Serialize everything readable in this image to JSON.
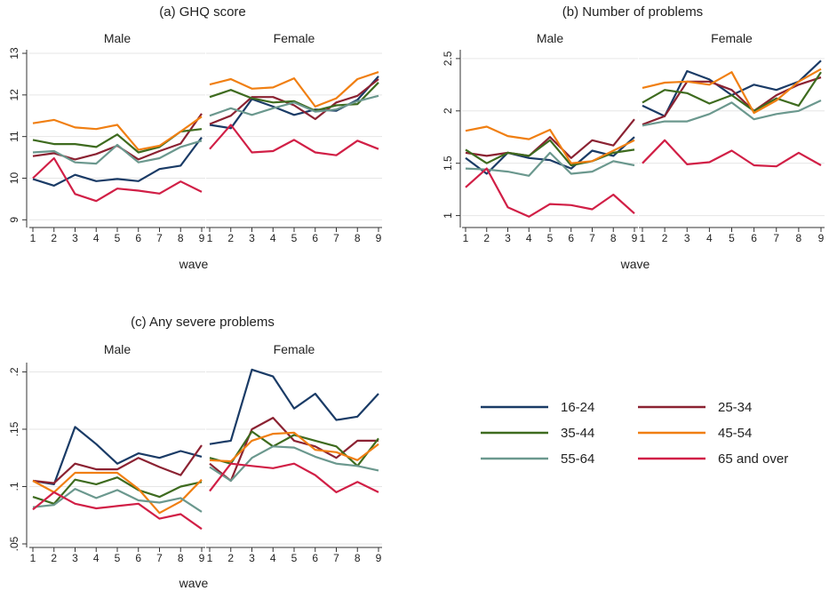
{
  "legend": [
    {
      "name": "16-24",
      "color": "#1a3b66"
    },
    {
      "name": "25-34",
      "color": "#8b2232"
    },
    {
      "name": "35-44",
      "color": "#3e6b1f"
    },
    {
      "name": "45-54",
      "color": "#f07f12"
    },
    {
      "name": "55-64",
      "color": "#6b988e"
    },
    {
      "name": "65 and over",
      "color": "#d11f46"
    }
  ],
  "chart_data": [
    {
      "type": "line",
      "title": "(a) GHQ score",
      "xlabel": "wave",
      "ylabel": "",
      "x": [
        1,
        2,
        3,
        4,
        5,
        6,
        7,
        8,
        9
      ],
      "ylim": [
        8.9,
        13.0
      ],
      "yticks": [
        9,
        10,
        11,
        12,
        13
      ],
      "ytick_labels": [
        "9",
        "10",
        "11",
        "12",
        "13"
      ],
      "panels": [
        {
          "name": "Male",
          "series": [
            {
              "name": "16-24",
              "values": [
                9.98,
                9.82,
                10.08,
                9.93,
                9.98,
                9.93,
                10.22,
                10.3,
                10.98
              ]
            },
            {
              "name": "25-34",
              "values": [
                10.53,
                10.6,
                10.45,
                10.58,
                10.78,
                10.45,
                10.65,
                10.83,
                11.55
              ]
            },
            {
              "name": "35-44",
              "values": [
                10.92,
                10.82,
                10.82,
                10.75,
                11.05,
                10.62,
                10.75,
                11.12,
                11.18
              ]
            },
            {
              "name": "45-54",
              "values": [
                11.32,
                11.4,
                11.22,
                11.18,
                11.28,
                10.68,
                10.78,
                11.12,
                11.48
              ]
            },
            {
              "name": "55-64",
              "values": [
                10.62,
                10.65,
                10.38,
                10.35,
                10.8,
                10.38,
                10.48,
                10.75,
                10.9
              ]
            },
            {
              "name": "65 and over",
              "values": [
                10.0,
                10.48,
                9.62,
                9.45,
                9.75,
                9.7,
                9.63,
                9.92,
                9.67
              ]
            }
          ]
        },
        {
          "name": "Female",
          "series": [
            {
              "name": "16-24",
              "values": [
                11.28,
                11.2,
                11.9,
                11.72,
                11.52,
                11.65,
                11.62,
                11.88,
                12.45
              ]
            },
            {
              "name": "25-34",
              "values": [
                11.3,
                11.5,
                11.95,
                11.95,
                11.75,
                11.42,
                11.82,
                11.98,
                12.38
              ]
            },
            {
              "name": "35-44",
              "values": [
                11.95,
                12.12,
                11.92,
                11.82,
                11.85,
                11.62,
                11.75,
                11.78,
                12.3
              ]
            },
            {
              "name": "45-54",
              "values": [
                12.25,
                12.38,
                12.15,
                12.18,
                12.4,
                11.72,
                11.92,
                12.38,
                12.55
              ]
            },
            {
              "name": "55-64",
              "values": [
                11.5,
                11.68,
                11.52,
                11.68,
                11.82,
                11.6,
                11.65,
                11.85,
                11.98
              ]
            },
            {
              "name": "65 and over",
              "values": [
                10.7,
                11.28,
                10.62,
                10.65,
                10.92,
                10.62,
                10.55,
                10.9,
                10.7
              ]
            }
          ]
        }
      ]
    },
    {
      "type": "line",
      "title": "(b) Number of problems",
      "xlabel": "wave",
      "ylabel": "",
      "x": [
        1,
        2,
        3,
        4,
        5,
        6,
        7,
        8,
        9
      ],
      "ylim": [
        0.92,
        2.55
      ],
      "yticks": [
        1,
        1.5,
        2,
        2.5
      ],
      "ytick_labels": [
        "1",
        "1.5",
        "2",
        "2.5"
      ],
      "panels": [
        {
          "name": "Male",
          "series": [
            {
              "name": "16-24",
              "values": [
                1.55,
                1.4,
                1.6,
                1.55,
                1.53,
                1.45,
                1.62,
                1.57,
                1.75
              ]
            },
            {
              "name": "25-34",
              "values": [
                1.6,
                1.57,
                1.6,
                1.57,
                1.75,
                1.55,
                1.72,
                1.67,
                1.92
              ]
            },
            {
              "name": "35-44",
              "values": [
                1.63,
                1.5,
                1.6,
                1.57,
                1.72,
                1.48,
                1.52,
                1.6,
                1.63
              ]
            },
            {
              "name": "45-54",
              "values": [
                1.81,
                1.85,
                1.76,
                1.73,
                1.82,
                1.5,
                1.52,
                1.62,
                1.72
              ]
            },
            {
              "name": "55-64",
              "values": [
                1.45,
                1.44,
                1.42,
                1.38,
                1.6,
                1.4,
                1.42,
                1.52,
                1.48
              ]
            },
            {
              "name": "65 and over",
              "values": [
                1.27,
                1.45,
                1.08,
                0.99,
                1.11,
                1.1,
                1.06,
                1.2,
                1.02
              ]
            }
          ]
        },
        {
          "name": "Female",
          "series": [
            {
              "name": "16-24",
              "values": [
                2.05,
                1.95,
                2.38,
                2.3,
                2.15,
                2.25,
                2.2,
                2.28,
                2.48
              ]
            },
            {
              "name": "25-34",
              "values": [
                1.87,
                1.95,
                2.28,
                2.28,
                2.2,
                2.0,
                2.15,
                2.25,
                2.32
              ]
            },
            {
              "name": "35-44",
              "values": [
                2.08,
                2.2,
                2.17,
                2.07,
                2.15,
                2.0,
                2.12,
                2.05,
                2.37
              ]
            },
            {
              "name": "45-54",
              "values": [
                2.22,
                2.27,
                2.28,
                2.25,
                2.37,
                1.98,
                2.1,
                2.28,
                2.4
              ]
            },
            {
              "name": "55-64",
              "values": [
                1.86,
                1.9,
                1.9,
                1.97,
                2.08,
                1.92,
                1.97,
                2.0,
                2.1
              ]
            },
            {
              "name": "65 and over",
              "values": [
                1.5,
                1.72,
                1.49,
                1.51,
                1.62,
                1.48,
                1.47,
                1.6,
                1.48
              ]
            }
          ]
        }
      ]
    },
    {
      "type": "line",
      "title": "(c) Any severe problems",
      "xlabel": "wave",
      "ylabel": "",
      "x": [
        1,
        2,
        3,
        4,
        5,
        6,
        7,
        8,
        9
      ],
      "ylim": [
        0.05,
        0.205
      ],
      "yticks": [
        0.05,
        0.1,
        0.15,
        0.2
      ],
      "ytick_labels": [
        ".05",
        ".1",
        ".15",
        ".2"
      ],
      "panels": [
        {
          "name": "Male",
          "series": [
            {
              "name": "16-24",
              "values": [
                0.105,
                0.102,
                0.152,
                0.137,
                0.12,
                0.129,
                0.125,
                0.131,
                0.126
              ]
            },
            {
              "name": "25-34",
              "values": [
                0.105,
                0.103,
                0.12,
                0.115,
                0.115,
                0.125,
                0.117,
                0.11,
                0.136
              ]
            },
            {
              "name": "35-44",
              "values": [
                0.091,
                0.085,
                0.106,
                0.102,
                0.108,
                0.097,
                0.091,
                0.1,
                0.104
              ]
            },
            {
              "name": "45-54",
              "values": [
                0.105,
                0.095,
                0.112,
                0.112,
                0.112,
                0.098,
                0.077,
                0.087,
                0.106
              ]
            },
            {
              "name": "55-64",
              "values": [
                0.082,
                0.084,
                0.098,
                0.09,
                0.097,
                0.088,
                0.086,
                0.09,
                0.078
              ]
            },
            {
              "name": "65 and over",
              "values": [
                0.08,
                0.095,
                0.085,
                0.081,
                0.083,
                0.085,
                0.072,
                0.076,
                0.063
              ]
            }
          ]
        },
        {
          "name": "Female",
          "series": [
            {
              "name": "16-24",
              "values": [
                0.137,
                0.14,
                0.202,
                0.196,
                0.168,
                0.181,
                0.158,
                0.161,
                0.181
              ]
            },
            {
              "name": "25-34",
              "values": [
                0.12,
                0.105,
                0.15,
                0.16,
                0.14,
                0.135,
                0.125,
                0.14,
                0.14
              ]
            },
            {
              "name": "35-44",
              "values": [
                0.125,
                0.12,
                0.148,
                0.135,
                0.145,
                0.14,
                0.135,
                0.118,
                0.142
              ]
            },
            {
              "name": "45-54",
              "values": [
                0.123,
                0.122,
                0.14,
                0.146,
                0.147,
                0.132,
                0.13,
                0.123,
                0.137
              ]
            },
            {
              "name": "55-64",
              "values": [
                0.117,
                0.105,
                0.125,
                0.135,
                0.134,
                0.126,
                0.12,
                0.118,
                0.114
              ]
            },
            {
              "name": "65 and over",
              "values": [
                0.096,
                0.12,
                0.118,
                0.116,
                0.12,
                0.11,
                0.095,
                0.104,
                0.095
              ]
            }
          ]
        }
      ]
    }
  ]
}
